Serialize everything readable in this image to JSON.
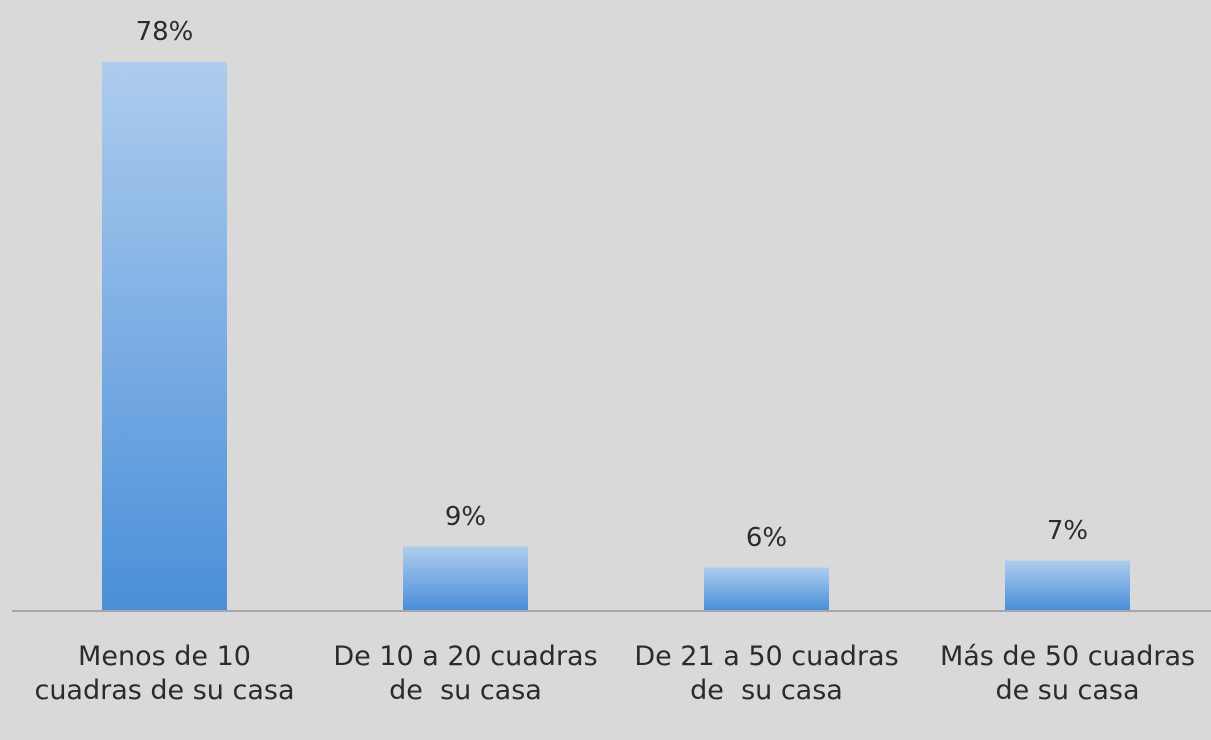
{
  "chart_data": {
    "type": "bar",
    "categories": [
      "Menos de 10 cuadras de su casa",
      "De 10 a 20 cuadras de  su casa",
      "De 21 a 50 cuadras de  su casa",
      "Más de 50 cuadras de su casa"
    ],
    "values": [
      78,
      9,
      6,
      7
    ],
    "value_labels": [
      "78%",
      "9%",
      "6%",
      "7%"
    ],
    "color": "#4a8fd9"
  }
}
